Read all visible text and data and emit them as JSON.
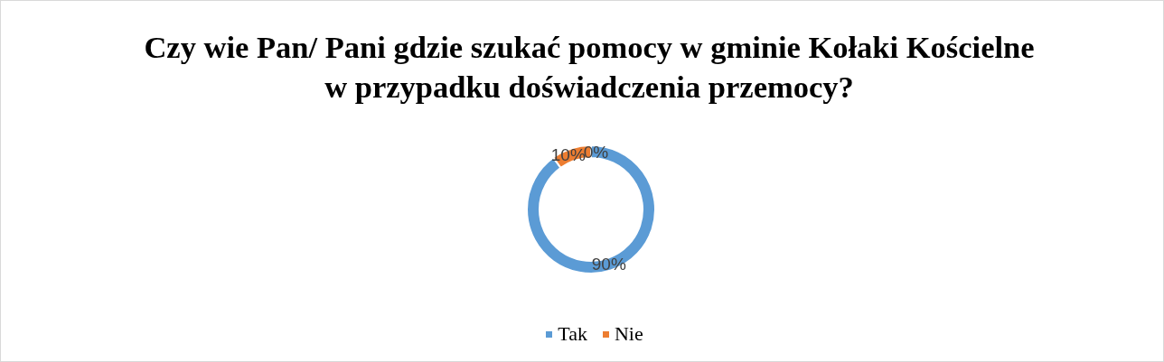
{
  "chart_data": {
    "type": "donut",
    "title": "Czy wie Pan/ Pani gdzie szukać pomocy w gminie Kołaki Kościelne\nw przypadku doświadczenia przemocy?",
    "categories": [
      "Tak",
      "Nie",
      null
    ],
    "values": [
      90,
      10,
      0
    ],
    "colors": [
      "#5b9bd5",
      "#ed7d31",
      "#a5a5a5"
    ],
    "value_labels": [
      "90%",
      "10%",
      "0%"
    ],
    "legend": "bottom"
  }
}
